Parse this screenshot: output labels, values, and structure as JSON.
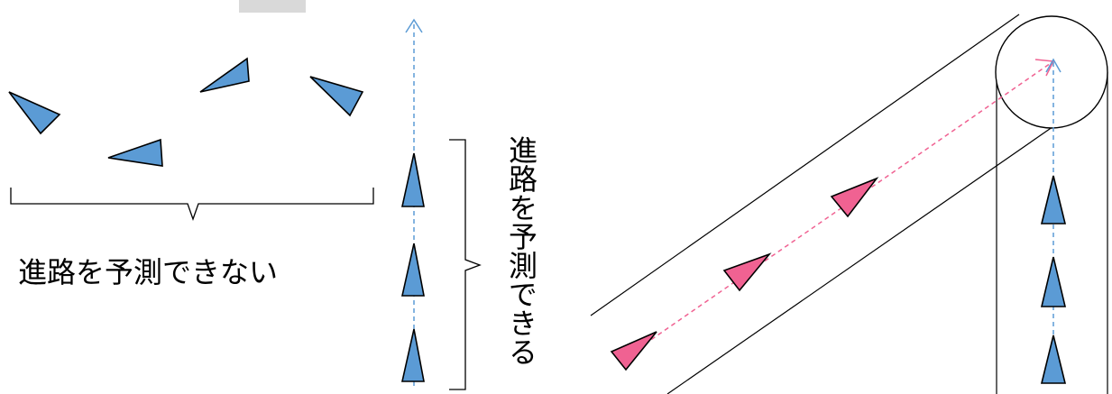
{
  "labels": {
    "unpredictable": "進路を予測できない",
    "predictable": "進路を予測できる"
  },
  "colors": {
    "blue_fill": "#5B9BD5",
    "pink_fill": "#F06292",
    "outline": "#000000",
    "blue_dash": "#5B9BD5",
    "pink_dash": "#F06292",
    "top_gray_box": "#D9D9D9"
  }
}
